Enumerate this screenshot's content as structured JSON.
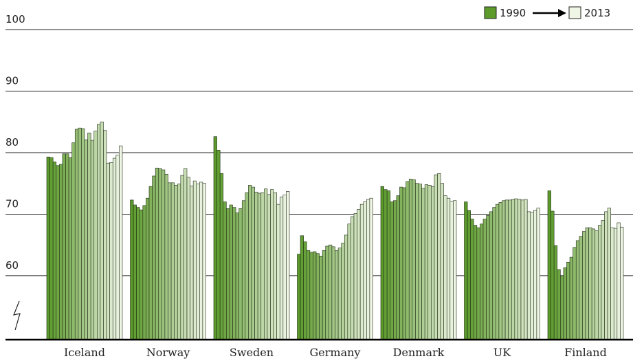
{
  "chart_data": {
    "type": "grouped-bar",
    "legend": {
      "start": "1990",
      "end": "2013"
    },
    "colors": [
      "#5b9a2b",
      "#eff6e6"
    ],
    "ylim": [
      49.6,
      100
    ],
    "yticks": [
      60,
      70,
      80,
      90,
      100
    ],
    "grid": true,
    "groups": [
      {
        "name": "Iceland",
        "values": [
          79.3,
          79.2,
          78.5,
          77.9,
          78.1,
          79.8,
          79.8,
          79.2,
          81.6,
          83.8,
          84.0,
          83.9,
          82.1,
          83.2,
          82.0,
          83.5,
          84.6,
          85.0,
          83.6,
          78.3,
          78.4,
          79.1,
          79.6,
          81.1
        ]
      },
      {
        "name": "Norway",
        "values": [
          72.3,
          71.5,
          71.1,
          70.7,
          71.4,
          72.6,
          74.5,
          76.2,
          77.5,
          77.4,
          77.2,
          76.5,
          75.1,
          75.1,
          74.7,
          74.9,
          76.3,
          77.4,
          76.0,
          74.6,
          75.4,
          74.9,
          75.2,
          75.0
        ]
      },
      {
        "name": "Sweden",
        "values": [
          82.6,
          80.4,
          76.6,
          72.0,
          70.9,
          71.5,
          71.1,
          70.2,
          70.9,
          72.2,
          73.5,
          74.7,
          74.4,
          73.6,
          73.4,
          73.5,
          74.1,
          73.2,
          74.0,
          73.5,
          71.6,
          72.8,
          73.1,
          73.7
        ]
      },
      {
        "name": "Germany",
        "values": [
          63.5,
          66.5,
          65.5,
          64.1,
          63.8,
          63.9,
          63.6,
          63.2,
          64.1,
          64.8,
          65.0,
          64.7,
          64.1,
          64.5,
          65.3,
          66.6,
          68.4,
          69.6,
          70.1,
          70.8,
          71.6,
          72.0,
          72.4,
          72.6
        ]
      },
      {
        "name": "Denmark",
        "values": [
          74.5,
          74.0,
          73.8,
          72.0,
          72.2,
          73.0,
          74.4,
          74.3,
          75.3,
          75.7,
          75.6,
          75.0,
          74.9,
          74.2,
          74.8,
          74.7,
          74.5,
          76.4,
          76.6,
          75.0,
          73.0,
          72.6,
          72.1,
          72.2
        ]
      },
      {
        "name": "UK",
        "values": [
          72.0,
          70.6,
          69.2,
          68.2,
          67.8,
          68.4,
          69.2,
          69.8,
          70.4,
          71.1,
          71.6,
          71.9,
          72.2,
          72.3,
          72.3,
          72.4,
          72.5,
          72.4,
          72.3,
          72.4,
          70.4,
          70.3,
          70.6,
          71.0
        ]
      },
      {
        "name": "Finland",
        "values": [
          73.8,
          70.5,
          64.9,
          61.0,
          60.0,
          61.3,
          62.2,
          63.0,
          64.6,
          65.7,
          66.4,
          67.2,
          67.8,
          67.8,
          67.6,
          67.3,
          68.2,
          69.0,
          70.4,
          71.0,
          67.8,
          67.7,
          68.6,
          67.9
        ]
      }
    ]
  }
}
